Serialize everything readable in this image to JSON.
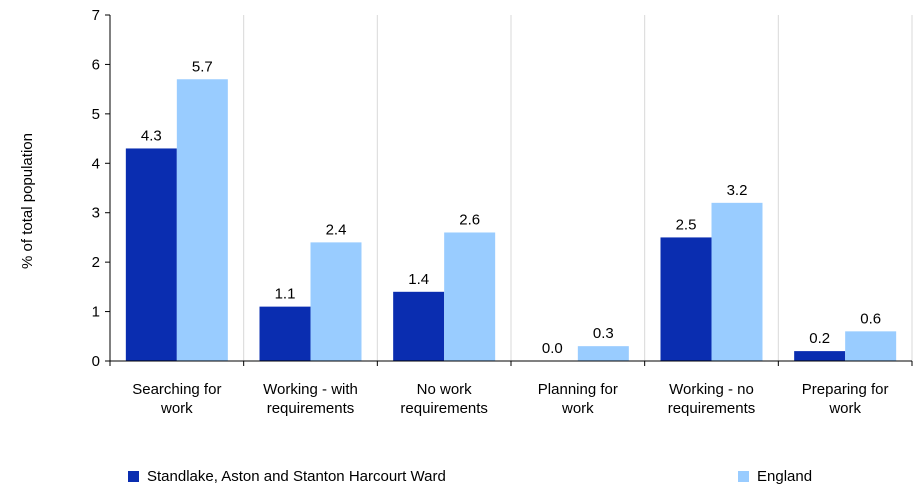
{
  "chart_data": {
    "type": "bar",
    "ylabel": "% of total population",
    "ylim": [
      0,
      7
    ],
    "yticks": [
      "0",
      "1",
      "2",
      "3",
      "4",
      "5",
      "6",
      "7"
    ],
    "grid": "vertical-category-separators",
    "legend_position": "bottom",
    "categories": [
      [
        "Searching for",
        "work"
      ],
      [
        "Working - with",
        "requirements"
      ],
      [
        "No work",
        "requirements"
      ],
      [
        "Planning for",
        "work"
      ],
      [
        "Working - no",
        "requirements"
      ],
      [
        "Preparing for",
        "work"
      ]
    ],
    "series": [
      {
        "name": "Standlake, Aston and Stanton Harcourt Ward",
        "color": "#0a2db0",
        "values": [
          4.3,
          1.1,
          1.4,
          0.0,
          2.5,
          0.2
        ],
        "labels": [
          "4.3",
          "1.1",
          "1.4",
          "0.0",
          "2.5",
          "0.2"
        ]
      },
      {
        "name": "England",
        "color": "#99ccff",
        "values": [
          5.7,
          2.4,
          2.6,
          0.3,
          3.2,
          0.6
        ],
        "labels": [
          "5.7",
          "2.4",
          "2.6",
          "0.3",
          "3.2",
          "0.6"
        ]
      }
    ]
  }
}
